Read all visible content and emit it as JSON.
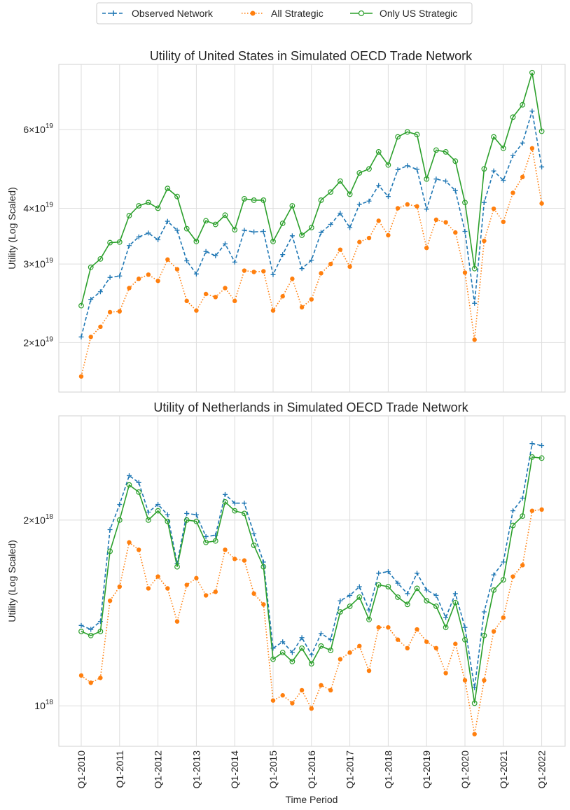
{
  "legend": {
    "entries": [
      {
        "label": "Observed Network",
        "color": "#1f77b4",
        "style": "dashed",
        "marker": "plus"
      },
      {
        "label": "All Strategic",
        "color": "#ff7f0e",
        "style": "dotted",
        "marker": "dot"
      },
      {
        "label": "Only US Strategic",
        "color": "#2ca02c",
        "style": "solid",
        "marker": "circle-open"
      }
    ]
  },
  "xaxis": {
    "label": "Time Period",
    "ticks": [
      "Q1-2010",
      "Q1-2011",
      "Q1-2012",
      "Q1-2013",
      "Q1-2014",
      "Q1-2015",
      "Q1-2016",
      "Q1-2017",
      "Q1-2018",
      "Q1-2019",
      "Q1-2020",
      "Q1-2021",
      "Q1-2022"
    ]
  },
  "chart_data": [
    {
      "type": "line",
      "title": "Utility of United States in Simulated OECD Trade Network",
      "ylabel": "Utility (Log Scaled)",
      "yscale": "log",
      "ylim": [
        1.55e+19,
        8.4e+19
      ],
      "yticks": [
        {
          "value": 2e+19,
          "base": "2×10",
          "exp": "19"
        },
        {
          "value": 3e+19,
          "base": "3×10",
          "exp": "19"
        },
        {
          "value": 4e+19,
          "base": "4×10",
          "exp": "19"
        },
        {
          "value": 6e+19,
          "base": "6×10",
          "exp": "19"
        }
      ],
      "x_start_quarter_index": 0,
      "series": [
        {
          "name": "Observed Network",
          "values": [
            2.06e+19,
            2.5e+19,
            2.6e+19,
            2.8e+19,
            2.82e+19,
            3.3e+19,
            3.45e+19,
            3.52e+19,
            3.4e+19,
            3.74e+19,
            3.57e+19,
            3.05e+19,
            2.85e+19,
            3.2e+19,
            3.13e+19,
            3.33e+19,
            3.03e+19,
            3.57e+19,
            3.54e+19,
            3.55e+19,
            2.84e+19,
            3.15e+19,
            3.47e+19,
            2.93e+19,
            3.06e+19,
            3.53e+19,
            3.68e+19,
            3.9e+19,
            3.62e+19,
            4.08e+19,
            4.15e+19,
            4.5e+19,
            4.25e+19,
            4.88e+19,
            4.98e+19,
            4.89e+19,
            3.98e+19,
            4.65e+19,
            4.6e+19,
            4.38e+19,
            3.55e+19,
            2.45e+19,
            4.12e+19,
            4.85e+19,
            4.62e+19,
            5.25e+19,
            5.6e+19,
            6.6e+19,
            4.95e+19
          ]
        },
        {
          "name": "All Strategic",
          "values": [
            1.68e+19,
            2.06e+19,
            2.17e+19,
            2.34e+19,
            2.35e+19,
            2.65e+19,
            2.78e+19,
            2.84e+19,
            2.75e+19,
            3.07e+19,
            2.92e+19,
            2.48e+19,
            2.36e+19,
            2.57e+19,
            2.53e+19,
            2.65e+19,
            2.48e+19,
            2.9e+19,
            2.88e+19,
            2.89e+19,
            2.36e+19,
            2.54e+19,
            2.78e+19,
            2.4e+19,
            2.5e+19,
            2.86e+19,
            3e+19,
            3.23e+19,
            2.96e+19,
            3.36e+19,
            3.43e+19,
            3.75e+19,
            3.48e+19,
            4e+19,
            4.08e+19,
            4.04e+19,
            3.26e+19,
            3.77e+19,
            3.72e+19,
            3.53e+19,
            2.87e+19,
            2.03e+19,
            3.38e+19,
            3.99e+19,
            3.73e+19,
            4.33e+19,
            4.7e+19,
            5.45e+19,
            4.1e+19
          ]
        },
        {
          "name": "Only US Strategic",
          "values": [
            2.42e+19,
            2.95e+19,
            3.08e+19,
            3.35e+19,
            3.36e+19,
            3.85e+19,
            4.05e+19,
            4.12e+19,
            4e+19,
            4.43e+19,
            4.25e+19,
            3.6e+19,
            3.37e+19,
            3.75e+19,
            3.68e+19,
            3.86e+19,
            3.58e+19,
            4.2e+19,
            4.17e+19,
            4.17e+19,
            3.37e+19,
            3.7e+19,
            4.05e+19,
            3.48e+19,
            3.62e+19,
            4.17e+19,
            4.35e+19,
            4.6e+19,
            4.3e+19,
            4.8e+19,
            4.9e+19,
            5.35e+19,
            5e+19,
            5.78e+19,
            5.93e+19,
            5.85e+19,
            4.65e+19,
            5.4e+19,
            5.35e+19,
            5.1e+19,
            4.12e+19,
            2.93e+19,
            4.9e+19,
            5.78e+19,
            5.45e+19,
            6.4e+19,
            6.82e+19,
            8.05e+19,
            5.95e+19
          ]
        }
      ]
    },
    {
      "type": "line",
      "title": "Utility of Netherlands in Simulated OECD Trade Network",
      "ylabel": "Utility (Log Scaled)",
      "yscale": "log",
      "ylim": [
        8.6e+17,
        2.95e+18
      ],
      "yticks": [
        {
          "value": 1e+18,
          "base": "10",
          "exp": "18"
        },
        {
          "value": 2e+18,
          "base": "2×10",
          "exp": "18"
        }
      ],
      "x_start_quarter_index": 0,
      "series": [
        {
          "name": "Observed Network",
          "values": [
            1.35e+18,
            1.33e+18,
            1.37e+18,
            1.93e+18,
            2.12e+18,
            2.36e+18,
            2.3e+18,
            2.06e+18,
            2.12e+18,
            2.04e+18,
            1.7e+18,
            2.05e+18,
            2.04e+18,
            1.88e+18,
            1.89e+18,
            2.2e+18,
            2.13e+18,
            2.13e+18,
            1.9e+18,
            1.71e+18,
            1.24e+18,
            1.27e+18,
            1.22e+18,
            1.29e+18,
            1.21e+18,
            1.31e+18,
            1.28e+18,
            1.48e+18,
            1.51e+18,
            1.56e+18,
            1.43e+18,
            1.64e+18,
            1.65e+18,
            1.58e+18,
            1.52e+18,
            1.64e+18,
            1.54e+18,
            1.51e+18,
            1.39e+18,
            1.52e+18,
            1.34e+18,
            1.07e+18,
            1.42e+18,
            1.63e+18,
            1.71e+18,
            2.07e+18,
            2.17e+18,
            2.66e+18,
            2.64e+18
          ]
        },
        {
          "name": "All Strategic",
          "values": [
            1.12e+18,
            1.09e+18,
            1.11e+18,
            1.48e+18,
            1.56e+18,
            1.84e+18,
            1.79e+18,
            1.55e+18,
            1.62e+18,
            1.55e+18,
            1.37e+18,
            1.57e+18,
            1.61e+18,
            1.51e+18,
            1.53e+18,
            1.79e+18,
            1.73e+18,
            1.72e+18,
            1.52e+18,
            1.46e+18,
            1.02e+18,
            1.04e+18,
            1.01e+18,
            1.06e+18,
            9.9e+17,
            1.08e+18,
            1.06e+18,
            1.19e+18,
            1.22e+18,
            1.25e+18,
            1.14e+18,
            1.34e+18,
            1.34e+18,
            1.28e+18,
            1.24e+18,
            1.33e+18,
            1.27e+18,
            1.24e+18,
            1.13e+18,
            1.26e+18,
            1.1e+18,
            9e+17,
            1.1e+18,
            1.32e+18,
            1.39e+18,
            1.62e+18,
            1.69e+18,
            2.07e+18,
            2.08e+18
          ]
        },
        {
          "name": "Only US Strategic",
          "values": [
            1.32e+18,
            1.3e+18,
            1.32e+18,
            1.78e+18,
            2e+18,
            2.28e+18,
            2.22e+18,
            2e+18,
            2.07e+18,
            1.99e+18,
            1.68e+18,
            2e+18,
            1.99e+18,
            1.84e+18,
            1.85e+18,
            2.14e+18,
            2.07e+18,
            2.05e+18,
            1.82e+18,
            1.68e+18,
            1.19e+18,
            1.22e+18,
            1.18e+18,
            1.24e+18,
            1.17e+18,
            1.25e+18,
            1.23e+18,
            1.42e+18,
            1.45e+18,
            1.5e+18,
            1.38e+18,
            1.57e+18,
            1.56e+18,
            1.5e+18,
            1.46e+18,
            1.55e+18,
            1.48e+18,
            1.45e+18,
            1.34e+18,
            1.47e+18,
            1.28e+18,
            1.01e+18,
            1.3e+18,
            1.54e+18,
            1.6e+18,
            1.96e+18,
            2.03e+18,
            2.53e+18,
            2.52e+18
          ]
        }
      ]
    }
  ]
}
